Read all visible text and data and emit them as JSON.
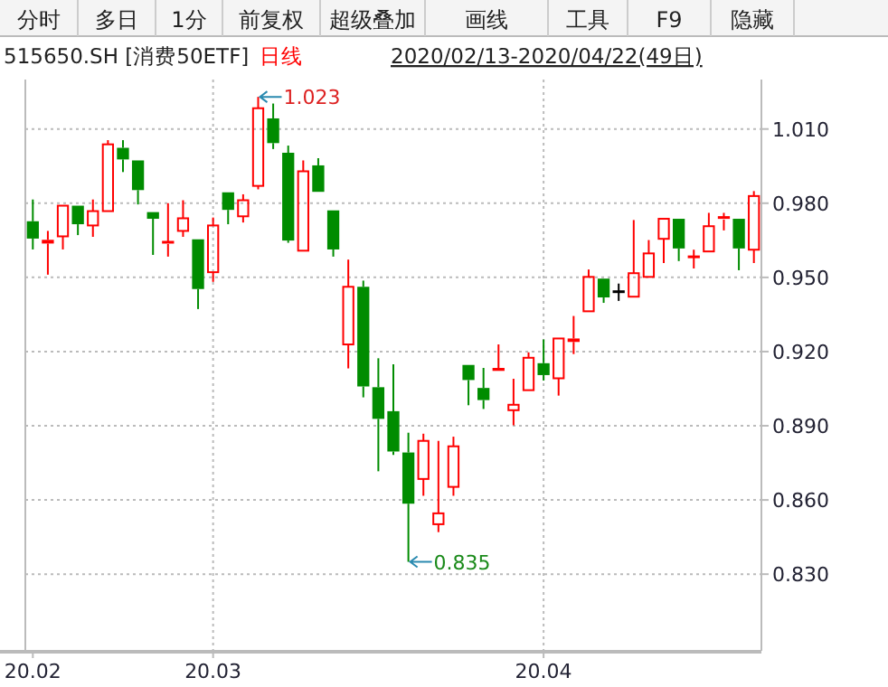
{
  "chart_data": {
    "type": "candlestick",
    "title": "515650.SH [消费50ETF]",
    "subtitle": "日线",
    "annotations": [
      "分时",
      "多日",
      "1分",
      "前复权",
      "超级叠加",
      "画线",
      "工具",
      "F9",
      "隐藏",
      "2020/02/13-2020/04/22(49日)",
      "1.023",
      "0.835"
    ],
    "categories": [
      "20.02",
      null,
      null,
      null,
      null,
      null,
      null,
      null,
      null,
      null,
      null,
      null,
      "20.03",
      null,
      null,
      null,
      null,
      null,
      null,
      null,
      null,
      null,
      null,
      null,
      null,
      null,
      null,
      null,
      null,
      null,
      null,
      null,
      null,
      null,
      "20.04",
      null,
      null,
      null,
      null,
      null,
      null,
      null,
      null,
      null,
      null,
      null,
      null,
      null,
      null
    ],
    "ohlc": [
      [
        0.9727,
        0.9815,
        0.9613,
        0.9657
      ],
      [
        0.9637,
        0.9688,
        0.9511,
        0.9652
      ],
      [
        0.9666,
        0.979,
        0.9613,
        0.979
      ],
      [
        0.979,
        0.979,
        0.9671,
        0.9715
      ],
      [
        0.971,
        0.9815,
        0.9664,
        0.9768
      ],
      [
        0.9768,
        1.0055,
        0.9768,
        1.0038
      ],
      [
        1.0024,
        1.0055,
        0.9926,
        0.9977
      ],
      [
        0.9973,
        0.9973,
        0.9795,
        0.9853
      ],
      [
        0.9764,
        0.9764,
        0.9591,
        0.9737
      ],
      [
        0.9635,
        0.98,
        0.9584,
        0.9644
      ],
      [
        0.9688,
        0.9812,
        0.9664,
        0.9739
      ],
      [
        0.9654,
        0.9654,
        0.9372,
        0.9453
      ],
      [
        0.9521,
        0.9742,
        0.9482,
        0.971
      ],
      [
        0.9844,
        0.9844,
        0.9715,
        0.9773
      ],
      [
        0.9747,
        0.9836,
        0.9722,
        0.9812
      ],
      [
        0.987,
        1.023,
        0.9856,
        1.0184
      ],
      [
        1.0143,
        1.0203,
        1.0019,
        1.0043
      ],
      [
        1.0004,
        1.0033,
        0.964,
        0.9649
      ],
      [
        0.9608,
        0.9973,
        0.9608,
        0.9929
      ],
      [
        0.9953,
        0.9982,
        0.9846,
        0.9846
      ],
      [
        0.9771,
        0.9771,
        0.9584,
        0.9613
      ],
      [
        0.9229,
        0.9572,
        0.9132,
        0.9462
      ],
      [
        0.9462,
        0.9487,
        0.9015,
        0.9059
      ],
      [
        0.9056,
        0.9173,
        0.8716,
        0.8928
      ],
      [
        0.8959,
        0.9149,
        0.8782,
        0.8796
      ],
      [
        0.8792,
        0.8872,
        0.835,
        0.8585
      ],
      [
        0.8685,
        0.8868,
        0.8617,
        0.8839
      ],
      [
        0.8502,
        0.8839,
        0.847,
        0.8546
      ],
      [
        0.8653,
        0.8856,
        0.8617,
        0.8817
      ],
      [
        0.9146,
        0.9146,
        0.8983,
        0.9085
      ],
      [
        0.9053,
        0.9134,
        0.8968,
        0.9004
      ],
      [
        0.9122,
        0.9229,
        0.9122,
        0.9134
      ],
      [
        0.8963,
        0.909,
        0.8902,
        0.8985
      ],
      [
        0.9044,
        0.9197,
        0.9044,
        0.9175
      ],
      [
        0.9153,
        0.9249,
        0.9083,
        0.9105
      ],
      [
        0.9092,
        0.9253,
        0.9022,
        0.9253
      ],
      [
        0.9239,
        0.9344,
        0.919,
        0.9253
      ],
      [
        0.9363,
        0.9532,
        0.9363,
        0.9502
      ],
      [
        0.9495,
        0.9495,
        0.9397,
        0.9419
      ],
      [
        0.9444,
        0.9475,
        0.9405,
        0.9444
      ],
      [
        0.9422,
        0.9732,
        0.9422,
        0.9517
      ],
      [
        0.9502,
        0.9651,
        0.9502,
        0.9597
      ],
      [
        0.9656,
        0.9737,
        0.9558,
        0.9737
      ],
      [
        0.9737,
        0.9737,
        0.9566,
        0.9617
      ],
      [
        0.958,
        0.9612,
        0.9536,
        0.9585
      ],
      [
        0.9605,
        0.9761,
        0.9605,
        0.9707
      ],
      [
        0.9734,
        0.9761,
        0.969,
        0.9744
      ],
      [
        0.9737,
        0.9737,
        0.9529,
        0.9617
      ],
      [
        0.9612,
        0.9849,
        0.9558,
        0.9829
      ]
    ],
    "colors": [
      "#008c00",
      "#ff0000",
      "#ff0000",
      "#008c00",
      "#ff0000",
      "#ff0000",
      "#008c00",
      "#008c00",
      "#008c00",
      "#ff0000",
      "#ff0000",
      "#008c00",
      "#ff0000",
      "#008c00",
      "#ff0000",
      "#ff0000",
      "#008c00",
      "#008c00",
      "#ff0000",
      "#008c00",
      "#008c00",
      "#ff0000",
      "#008c00",
      "#008c00",
      "#008c00",
      "#008c00",
      "#ff0000",
      "#ff0000",
      "#ff0000",
      "#008c00",
      "#008c00",
      "#ff0000",
      "#ff0000",
      "#ff0000",
      "#008c00",
      "#ff0000",
      "#ff0000",
      "#ff0000",
      "#008c00",
      "#000000",
      "#ff0000",
      "#ff0000",
      "#ff0000",
      "#008c00",
      "#ff0000",
      "#ff0000",
      "#ff0000",
      "#008c00",
      "#ff0000"
    ],
    "ylim": [
      0.799,
      1.03
    ],
    "yticks": [
      {
        "value": 0.83,
        "label": "0.830"
      },
      {
        "value": 0.86,
        "label": "0.860"
      },
      {
        "value": 0.89,
        "label": "0.890"
      },
      {
        "value": 0.92,
        "label": "0.920"
      },
      {
        "value": 0.95,
        "label": "0.950"
      },
      {
        "value": 0.98,
        "label": "0.980"
      },
      {
        "value": 1.01,
        "label": "1.010"
      }
    ],
    "grid": "y",
    "ref_lines": [
      {
        "axis": "x",
        "value": "20.03"
      },
      {
        "axis": "x",
        "value": "20.04"
      }
    ]
  }
}
